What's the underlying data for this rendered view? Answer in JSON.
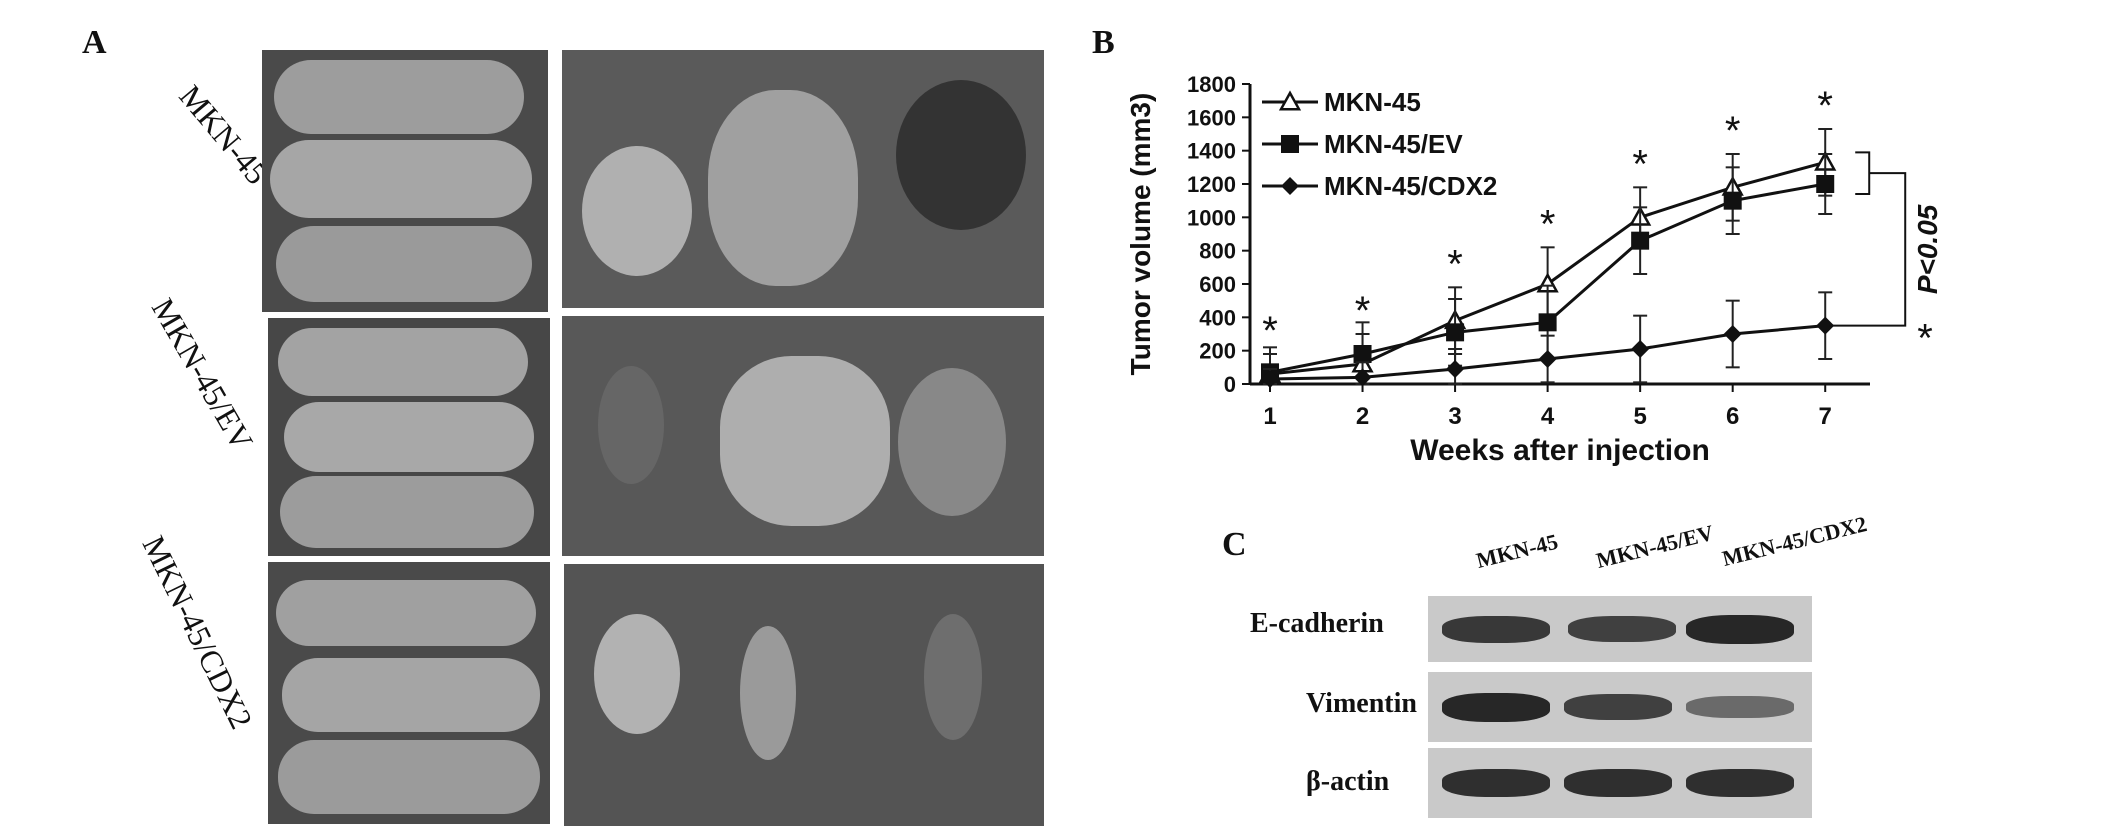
{
  "panels": {
    "a": {
      "letter": "A",
      "groups": [
        "MKN-45",
        "MKN-45/EV",
        "MKN-45/CDX2"
      ]
    },
    "b": {
      "letter": "B"
    },
    "c": {
      "letter": "C",
      "lanes": [
        "MKN-45",
        "MKN-45/EV",
        "MKN-45/CDX2"
      ],
      "rows": [
        "E-cadherin",
        "Vimentin",
        "β-actin"
      ],
      "row_intensity": [
        [
          0.85,
          0.8,
          0.95
        ],
        [
          0.95,
          0.8,
          0.55
        ],
        [
          0.9,
          0.9,
          0.9
        ]
      ]
    }
  },
  "chart_data": {
    "type": "line",
    "ylabel": "Tumor volume (mm3)",
    "xlabel": "Weeks after injection",
    "x": [
      1,
      2,
      3,
      4,
      5,
      6,
      7
    ],
    "ylim": [
      0,
      1800
    ],
    "yticks": [
      0,
      200,
      400,
      600,
      800,
      1000,
      1200,
      1400,
      1600,
      1800
    ],
    "series": [
      {
        "name": "MKN-45",
        "marker": "triangle-open",
        "values": [
          60,
          120,
          380,
          600,
          1000,
          1180,
          1330
        ],
        "errors": [
          120,
          180,
          200,
          220,
          180,
          200,
          200
        ]
      },
      {
        "name": "MKN-45/EV",
        "marker": "square-filled",
        "values": [
          70,
          180,
          310,
          370,
          860,
          1100,
          1200
        ],
        "errors": [
          150,
          190,
          200,
          220,
          200,
          200,
          180
        ]
      },
      {
        "name": "MKN-45/CDX2",
        "marker": "diamond-filled",
        "values": [
          30,
          40,
          90,
          150,
          210,
          300,
          350
        ],
        "errors": [
          60,
          90,
          120,
          140,
          200,
          200,
          200
        ]
      }
    ],
    "star_label": "*",
    "significance": "P<0.05",
    "legend_position": "top-left"
  }
}
